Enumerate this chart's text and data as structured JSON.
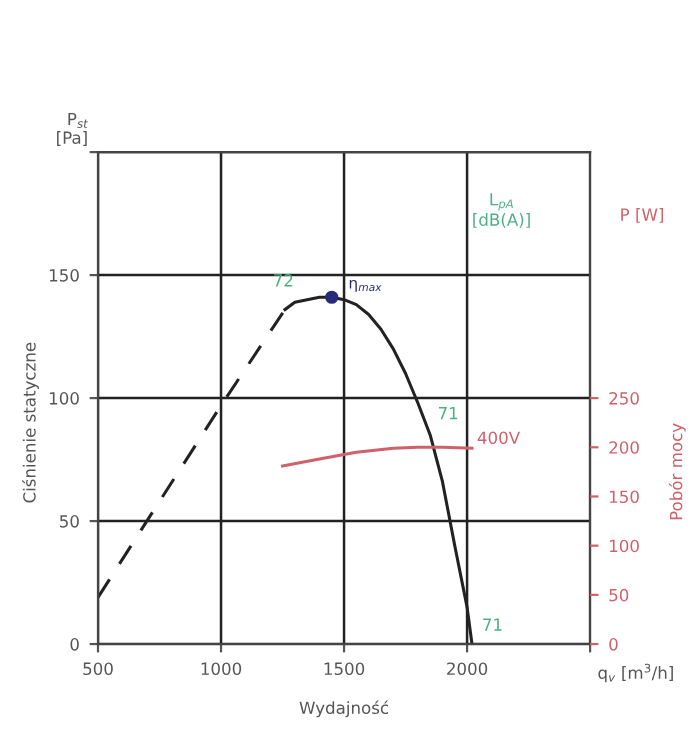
{
  "chart_data": {
    "type": "line",
    "xlabel": "Wydajność",
    "ylabel": "Ciśnienie statyczne",
    "y2label": "Pobór mocy",
    "xlim": [
      500,
      2500
    ],
    "xticks": [
      500,
      1000,
      1500,
      2000,
      {
        "value": 2500,
        "label": null
      }
    ],
    "ylim": [
      0,
      200
    ],
    "yticks": [
      0,
      50,
      100,
      150,
      {
        "value": 200,
        "label": null
      }
    ],
    "y2lim": [
      0,
      500
    ],
    "y2ticks": [
      0,
      50,
      100,
      150,
      200,
      250
    ],
    "grid": true,
    "marker": "none",
    "series": [
      {
        "color": "#222222",
        "line_style": "dashed",
        "x": [
          500,
          750,
          1000,
          1260
        ],
        "values": [
          19,
          58,
          97,
          136
        ]
      },
      {
        "color": "#222222",
        "line_style": "solid",
        "x": [
          1260,
          1300,
          1350,
          1400,
          1450,
          1500,
          1550,
          1600,
          1650,
          1700,
          1750,
          1800,
          1850,
          1900,
          1950,
          2000,
          2020
        ],
        "values": [
          136,
          139,
          140,
          141,
          141,
          140,
          138,
          134,
          128,
          120,
          110,
          98,
          85,
          66,
          40,
          15,
          0
        ]
      },
      {
        "type": "scatter",
        "color": "#2a2a7a",
        "marker": "circle",
        "x": [
          1450
        ],
        "values": [
          141
        ]
      },
      {
        "color": "#d0606a",
        "line_style": "solid",
        "axis": "y2",
        "x": [
          1250,
          1400,
          1550,
          1700,
          1800,
          1900,
          2020
        ],
        "values": [
          181,
          188,
          195,
          199,
          200,
          200,
          199
        ]
      }
    ],
    "annotations": [
      {
        "text": "η$_{max}$",
        "x": 1450,
        "y": 141
      },
      "72",
      "71",
      "400V",
      "71",
      "P$_{st}$\n[Pa]",
      "P [W]",
      "q$_{v}$ [m$^{3}$/h]",
      "L$_{pA}$\n[dB(A)]"
    ]
  }
}
